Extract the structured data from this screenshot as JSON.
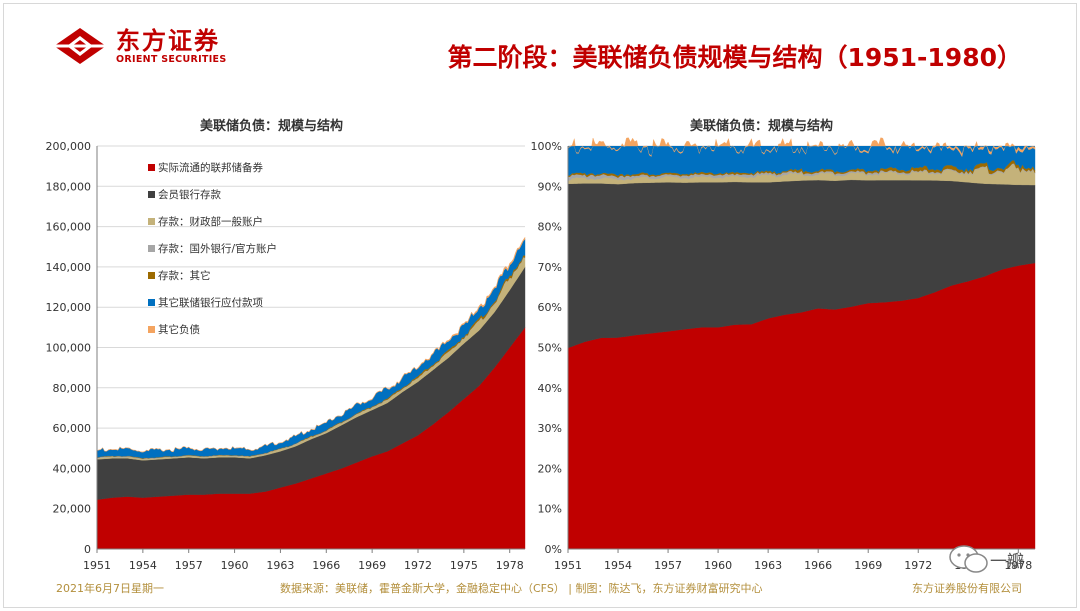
{
  "header": {
    "logo_cn": "东方证券",
    "logo_en": "ORIENT SECURITIES",
    "title": "第二阶段：美联储负债规模与结构（1951-1980）"
  },
  "footer": {
    "date": "2021年6月7日星期一",
    "source": "数据来源：美联储，霍普金斯大学，金融稳定中心（CFS）  | 制图：陈达飞，东方证券财富研究中心",
    "company": "东方证券股份有限公司"
  },
  "watermark": "一瓣",
  "colors": {
    "currency": "#c00000",
    "member_bank": "#404040",
    "treasury": "#c4b27a",
    "foreign": "#a6a6a6",
    "other_dep": "#9c6a00",
    "other_fed": "#0070c0",
    "other_liab": "#f4a460"
  },
  "chart_data": [
    {
      "type": "area",
      "stacked": true,
      "title": "美联储负债：规模与结构",
      "x_ticks": [
        "1951",
        "1954",
        "1957",
        "1960",
        "1963",
        "1966",
        "1969",
        "1972",
        "1975",
        "1978"
      ],
      "x": [
        1951,
        1952,
        1953,
        1954,
        1955,
        1956,
        1957,
        1958,
        1959,
        1960,
        1961,
        1962,
        1963,
        1964,
        1965,
        1966,
        1967,
        1968,
        1969,
        1970,
        1971,
        1972,
        1973,
        1974,
        1975,
        1976,
        1977,
        1978,
        1979
      ],
      "ylim": [
        0,
        200000
      ],
      "y_ticks": [
        "0",
        "20,000",
        "40,000",
        "60,000",
        "80,000",
        "100,000",
        "120,000",
        "140,000",
        "160,000",
        "180,000",
        "200,000"
      ],
      "y_tick_values": [
        0,
        20000,
        40000,
        60000,
        80000,
        100000,
        120000,
        140000,
        160000,
        180000,
        200000
      ],
      "legend_position": "top-left",
      "series": [
        {
          "name": "实际流通的联邦储备券",
          "color_key": "currency",
          "values": [
            24500,
            25500,
            26000,
            25500,
            26000,
            26500,
            27000,
            27000,
            27500,
            27500,
            27500,
            28500,
            30500,
            32500,
            35000,
            37500,
            40000,
            43000,
            46000,
            48500,
            52500,
            56500,
            62000,
            68000,
            74500,
            81000,
            90000,
            100000,
            110000
          ]
        },
        {
          "name": "会员银行存款",
          "color_key": "member_bank",
          "values": [
            20000,
            19500,
            19000,
            18500,
            18500,
            18500,
            18500,
            18000,
            18000,
            18000,
            17500,
            18000,
            18000,
            18500,
            19500,
            20000,
            21500,
            22500,
            23000,
            24000,
            25500,
            26500,
            27000,
            27000,
            27500,
            27500,
            27500,
            28500,
            30000
          ]
        },
        {
          "name": "存款：财政部一般账户",
          "color_key": "treasury",
          "values": [
            600,
            600,
            600,
            600,
            600,
            600,
            600,
            600,
            600,
            600,
            600,
            700,
            900,
            900,
            900,
            900,
            1100,
            1100,
            1200,
            1300,
            1400,
            1600,
            1900,
            2200,
            3000,
            3800,
            4500,
            5500,
            6200
          ]
        },
        {
          "name": "存款：国外银行/官方账户",
          "color_key": "foreign",
          "values": [
            400,
            400,
            400,
            400,
            300,
            300,
            300,
            300,
            300,
            300,
            300,
            300,
            300,
            300,
            300,
            300,
            300,
            300,
            300,
            300,
            300,
            300,
            300,
            300,
            300,
            300,
            300,
            300,
            300
          ]
        },
        {
          "name": "存款：其它",
          "color_key": "other_dep",
          "values": [
            200,
            200,
            200,
            200,
            200,
            200,
            200,
            200,
            200,
            200,
            200,
            200,
            200,
            200,
            300,
            300,
            300,
            300,
            400,
            500,
            600,
            700,
            700,
            800,
            800,
            900,
            1000,
            1000,
            1100
          ]
        },
        {
          "name": "其它联储银行应付款项",
          "color_key": "other_fed",
          "values": [
            3300,
            3300,
            3300,
            3300,
            3300,
            3300,
            3300,
            3300,
            3300,
            3300,
            3200,
            3300,
            3300,
            3400,
            3500,
            3700,
            4000,
            4100,
            4300,
            4400,
            4600,
            4800,
            5000,
            5200,
            5400,
            5500,
            5700,
            6000,
            6400
          ]
        },
        {
          "name": "其它负债",
          "color_key": "other_liab",
          "values": [
            100,
            100,
            100,
            100,
            100,
            100,
            100,
            100,
            100,
            100,
            100,
            100,
            100,
            100,
            100,
            100,
            100,
            200,
            200,
            200,
            300,
            300,
            400,
            500,
            600,
            700,
            800,
            900,
            1000
          ]
        }
      ]
    },
    {
      "type": "area",
      "stacked": true,
      "normalized": true,
      "title": "美联储负债：规模与结构",
      "x_ticks": [
        "1951",
        "1954",
        "1957",
        "1960",
        "1963",
        "1966",
        "1969",
        "1972",
        "1975",
        "1978"
      ],
      "ylim": [
        0,
        100
      ],
      "y_ticks": [
        "0%",
        "10%",
        "20%",
        "30%",
        "40%",
        "50%",
        "60%",
        "70%",
        "80%",
        "90%",
        "100%"
      ],
      "y_tick_values": [
        0,
        10,
        20,
        30,
        40,
        50,
        60,
        70,
        80,
        90,
        100
      ]
    }
  ]
}
